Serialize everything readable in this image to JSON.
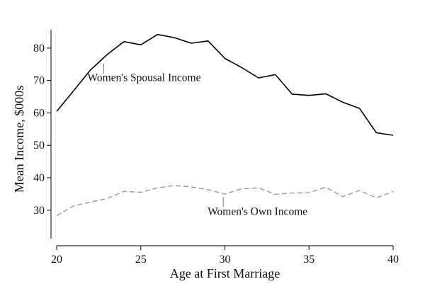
{
  "chart_data": {
    "type": "line",
    "title": "",
    "xlabel": "Age at First Marriage",
    "ylabel": "Mean Income, $000s",
    "xlim": [
      20,
      40
    ],
    "ylim": [
      21,
      85
    ],
    "x_ticks": [
      20,
      25,
      30,
      35,
      40
    ],
    "y_ticks": [
      30,
      40,
      50,
      60,
      70,
      80
    ],
    "grid": false,
    "x": [
      20,
      21,
      22,
      23,
      24,
      25,
      26,
      27,
      28,
      29,
      30,
      31,
      32,
      33,
      34,
      35,
      36,
      37,
      38,
      39,
      40
    ],
    "series": [
      {
        "name": "Women's Spousal Income",
        "values": [
          60.5,
          66.8,
          73.2,
          78,
          82,
          81,
          84.2,
          83.2,
          81.5,
          82.2,
          76.8,
          74,
          70.8,
          71.8,
          65.8,
          65.4,
          65.9,
          63.3,
          61.4,
          53.9,
          53.1
        ],
        "color": "#000000",
        "dash": "solid"
      },
      {
        "name": "Women's Own Income",
        "values": [
          28.3,
          31.3,
          32.5,
          33.6,
          35.8,
          35.5,
          36.9,
          37.6,
          37.2,
          36.3,
          35,
          36.6,
          36.9,
          34.9,
          35.3,
          35.4,
          37.1,
          34.2,
          36.1,
          33.8,
          35.8
        ],
        "color": "#999999",
        "dash": "dashed"
      }
    ],
    "annotations": [
      {
        "text": "Women's Spousal Income",
        "series": 0,
        "point_x": 22.8
      },
      {
        "text": "Women's Own Income",
        "series": 1,
        "point_x": 29.9
      }
    ]
  }
}
